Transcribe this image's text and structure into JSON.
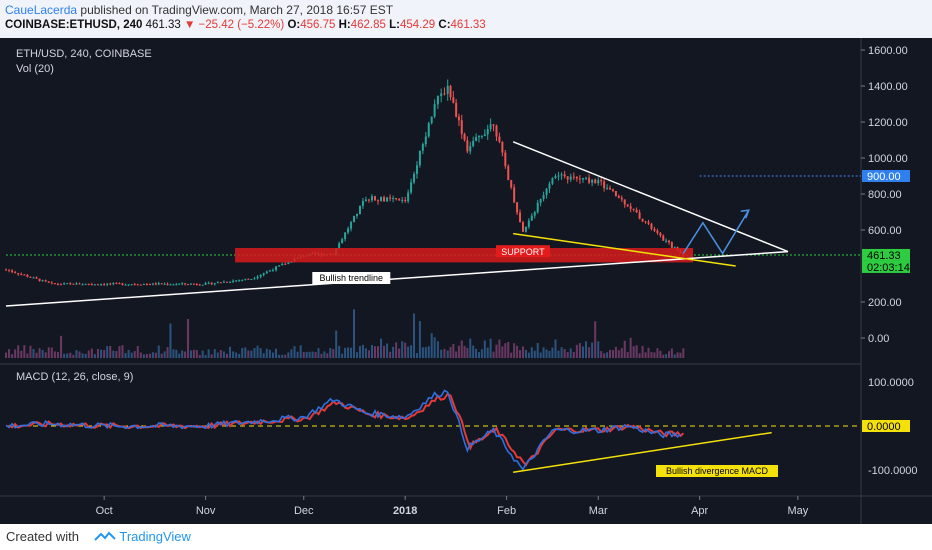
{
  "header": {
    "author": "CaueLacerda",
    "published": "published on TradingView.com, March 27, 2018 16:57 EST",
    "symbol": "COINBASE:ETHUSD, 240",
    "last": "461.33",
    "change": "▼ −25.42 (−5.22%)",
    "o_label": "O:",
    "o_value": "456.75",
    "h_label": "H:",
    "h_value": "462.85",
    "l_label": "L:",
    "l_value": "454.29",
    "c_label": "C:",
    "c_value": "461.33"
  },
  "chart": {
    "legend_title": "ETH/USD, 240, COINBASE",
    "volume_label": "Vol (20)",
    "macd_label": "MACD (12, 26, close, 9)",
    "price_labels": [
      {
        "text": "1600.00",
        "v": 1600
      },
      {
        "text": "1400.00",
        "v": 1400
      },
      {
        "text": "1200.00",
        "v": 1200
      },
      {
        "text": "1000.00",
        "v": 1000
      },
      {
        "text": "800.00",
        "v": 800
      },
      {
        "text": "600.00",
        "v": 600
      },
      {
        "text": "200.00",
        "v": 200
      },
      {
        "text": "0.00",
        "v": 0
      }
    ],
    "macd_axis_labels": [
      {
        "text": "100.0000",
        "v": 100
      },
      {
        "text": "-100.0000",
        "v": -100
      }
    ],
    "time_labels": [
      "Oct",
      "Nov",
      "Dec",
      "2018",
      "Feb",
      "Mar",
      "Apr",
      "May"
    ],
    "current_price_tag": "461.33",
    "countdown_tag": "02:03:14",
    "level_900_tag": "900.00",
    "macd_zero_tag": "0.0000",
    "annotations": {
      "support": "SUPPORT",
      "bullish_trendline": "Bullish trendline",
      "bullish_divergence": "Bullish divergence MACD"
    },
    "colors": {
      "background": "#131722",
      "candle_up": "#26a69a",
      "candle_down": "#ef5350",
      "macd_line": "#2f6fe0",
      "signal_line": "#e53935",
      "support_zone": "#d81b1b",
      "trendline": "#ffffff",
      "yellow_line": "#f5e10a",
      "projection": "#4a90e2",
      "price_tag": "#2ecc40",
      "level_tag": "#2f80ed"
    }
  },
  "chart_data": {
    "type": "line",
    "title": "ETH/USD, 240, COINBASE",
    "x": [
      "2017-09-01",
      "2017-09-15",
      "2017-10-01",
      "2017-10-15",
      "2017-11-01",
      "2017-11-15",
      "2017-12-01",
      "2017-12-10",
      "2017-12-20",
      "2018-01-01",
      "2018-01-10",
      "2018-01-14",
      "2018-01-20",
      "2018-01-28",
      "2018-02-06",
      "2018-02-15",
      "2018-03-01",
      "2018-03-10",
      "2018-03-20",
      "2018-03-27"
    ],
    "series": [
      {
        "values": [
          380,
          300,
          300,
          300,
          300,
          330,
          460,
          470,
          780,
          760,
          1300,
          1400,
          1050,
          1200,
          580,
          900,
          870,
          740,
          560,
          461
        ]
      }
    ],
    "ylim": [
      -100,
      1700
    ],
    "volume_series_label": "Vol (20)",
    "macd": {
      "label": "MACD (12, 26, close, 9)",
      "values": [
        0,
        5,
        0,
        0,
        0,
        10,
        20,
        60,
        30,
        20,
        70,
        80,
        -50,
        -10,
        -100,
        -10,
        -10,
        0,
        -20,
        -20
      ],
      "ylim": [
        -130,
        130
      ]
    },
    "annotations": [
      "SUPPORT",
      "Bullish trendline",
      "Bullish divergence MACD"
    ],
    "levels": [
      461.33,
      900
    ]
  }
}
